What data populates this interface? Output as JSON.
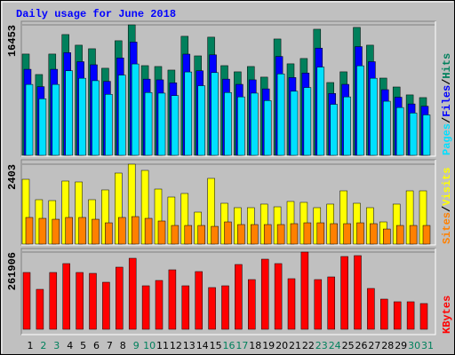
{
  "chart_data": [
    {
      "type": "bar",
      "title": "Daily usage for June 2018",
      "separator": "/",
      "ylim": [
        0,
        16453
      ],
      "yticks": [
        16453
      ],
      "series": [
        {
          "name": "Hits",
          "color": "#00805c",
          "values": [
            12770,
            10190,
            12770,
            15230,
            13890,
            13440,
            10980,
            14450,
            16453,
            11310,
            11200,
            10750,
            15010,
            12540,
            14900,
            11310,
            10530,
            11200,
            9860,
            14670,
            11540,
            12210,
            15900,
            9180,
            10530,
            16130,
            13890,
            9740,
            8620,
            7620,
            7280
          ]
        },
        {
          "name": "Files",
          "color": "#0000ff",
          "values": [
            10850,
            8660,
            10850,
            12950,
            11810,
            11420,
            9330,
            12280,
            14280,
            9610,
            9520,
            9140,
            12760,
            10660,
            12670,
            9610,
            8950,
            9520,
            8380,
            12470,
            9810,
            10380,
            13520,
            7800,
            8950,
            13710,
            11810,
            8280,
            7330,
            6480,
            6190
          ]
        },
        {
          "name": "Pages",
          "color": "#00e0ff",
          "values": [
            8940,
            7130,
            8940,
            10660,
            9720,
            9410,
            7690,
            10120,
            11520,
            7920,
            7840,
            7530,
            10510,
            8780,
            10430,
            7920,
            7370,
            7840,
            6900,
            10270,
            8080,
            8550,
            11130,
            6430,
            7370,
            11290,
            9720,
            6820,
            6030,
            5330,
            5100
          ]
        }
      ]
    },
    {
      "type": "bar",
      "separator": "/",
      "ylim": [
        0,
        2403
      ],
      "yticks": [
        2403
      ],
      "series": [
        {
          "name": "Visits",
          "color": "#ffff00",
          "values": [
            1949,
            1335,
            1308,
            1896,
            1869,
            1335,
            1629,
            2136,
            2403,
            2216,
            1655,
            1415,
            1522,
            961,
            1976,
            1228,
            1095,
            1095,
            1202,
            1121,
            1282,
            1255,
            1095,
            1202,
            1602,
            1228,
            1095,
            667,
            1202,
            1602,
            1602
          ]
        },
        {
          "name": "Sites",
          "color": "#ff8000",
          "values": [
            801,
            774,
            747,
            801,
            801,
            747,
            640,
            801,
            827,
            774,
            694,
            560,
            560,
            560,
            533,
            667,
            587,
            587,
            587,
            587,
            614,
            640,
            640,
            614,
            614,
            640,
            614,
            453,
            560,
            560,
            560
          ]
        }
      ]
    },
    {
      "type": "bar",
      "ylim": [
        0,
        261906
      ],
      "yticks": [
        261906
      ],
      "categories": [
        "1",
        "2",
        "3",
        "4",
        "5",
        "6",
        "7",
        "8",
        "9",
        "10",
        "11",
        "12",
        "13",
        "14",
        "15",
        "16",
        "17",
        "18",
        "19",
        "20",
        "21",
        "22",
        "23",
        "24",
        "25",
        "26",
        "27",
        "28",
        "29",
        "30",
        "31"
      ],
      "category_colors": [
        "#000000",
        "#00805c",
        "#00805c",
        "#000000",
        "#000000",
        "#000000",
        "#000000",
        "#000000",
        "#00805c",
        "#00805c",
        "#000000",
        "#000000",
        "#000000",
        "#000000",
        "#000000",
        "#00805c",
        "#00805c",
        "#000000",
        "#000000",
        "#000000",
        "#000000",
        "#000000",
        "#00805c",
        "#00805c",
        "#000000",
        "#000000",
        "#000000",
        "#000000",
        "#000000",
        "#00805c",
        "#00805c"
      ],
      "series": [
        {
          "name": "KBytes",
          "color": "#ff0000",
          "values": [
            192660,
            135470,
            192660,
            222780,
            192660,
            189650,
            159550,
            210730,
            240830,
            147510,
            165570,
            201700,
            147510,
            195670,
            141490,
            147510,
            219760,
            168580,
            237820,
            222780,
            171590,
            261906,
            168580,
            177610,
            246850,
            249860,
            138480,
            102350,
            93320,
            93320,
            87300
          ]
        }
      ]
    }
  ]
}
